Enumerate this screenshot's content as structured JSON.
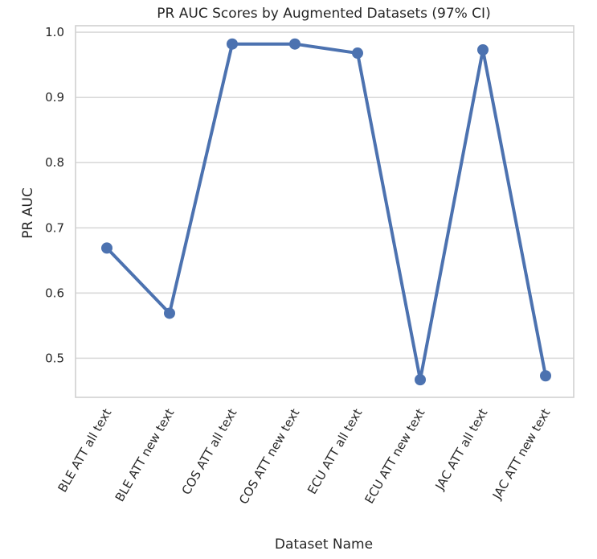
{
  "chart_data": {
    "type": "line",
    "title": "PR AUC Scores by Augmented Datasets (97% CI)",
    "xlabel": "Dataset Name",
    "ylabel": "PR AUC",
    "categories": [
      "BLE ATT  all text",
      "BLE ATT  new text",
      "COS ATT  all text",
      "COS ATT  new text",
      "ECU ATT  all text",
      "ECU ATT  new text",
      "JAC ATT  all text",
      "JAC ATT  new text"
    ],
    "series": [
      {
        "values": [
          0.669,
          0.569,
          0.982,
          0.982,
          0.968,
          0.467,
          0.973,
          0.473
        ]
      }
    ],
    "ylim": [
      0.44,
      1.01
    ],
    "yticks": [
      0.5,
      0.6,
      0.7,
      0.8,
      0.9,
      1.0
    ],
    "ytick_labels": [
      "0.5",
      "0.6",
      "0.7",
      "0.8",
      "0.9",
      "1.0"
    ],
    "grid": "horizontal",
    "colors": {
      "line": "#4c72b0",
      "grid": "#d9d9d9",
      "frame": "#d0d0d0"
    }
  }
}
